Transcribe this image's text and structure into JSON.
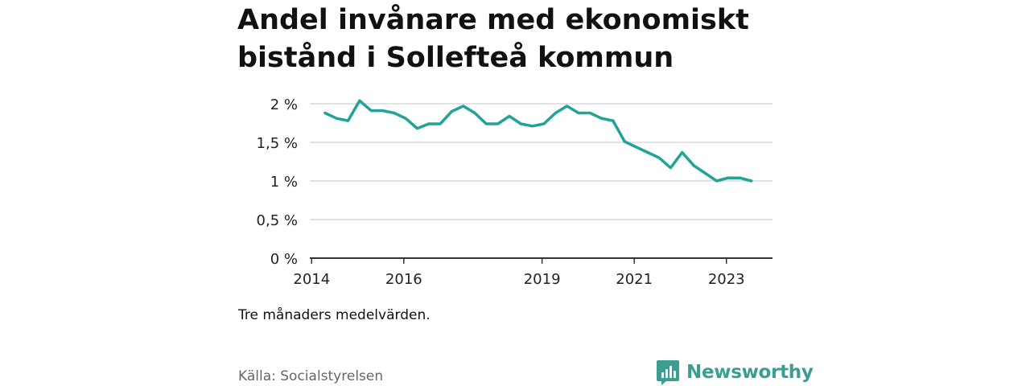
{
  "title": "Andel invånare med ekonomiskt bistånd i Sollefteå kommun",
  "note": "Tre månaders medelvärden.",
  "source": "Källa: Socialstyrelsen",
  "brand": {
    "name": "Newsworthy",
    "icon": "newsworthy-logo-icon",
    "color": "#3a9e91"
  },
  "chart_data": {
    "type": "line",
    "title": "Andel invånare med ekonomiskt bistånd i Sollefteå kommun",
    "xlabel": "",
    "ylabel": "",
    "ylim": [
      0,
      2
    ],
    "y_ticks": [
      0,
      0.5,
      1,
      1.5,
      2
    ],
    "y_tick_labels": [
      "0 %",
      "0,5 %",
      "1 %",
      "1,5 %",
      "2 %"
    ],
    "x_ticks": [
      2014,
      2016,
      2019,
      2021,
      2023
    ],
    "x_tick_labels": [
      "2014",
      "2016",
      "2019",
      "2021",
      "2023"
    ],
    "xlim": [
      2013.96,
      2024.0
    ],
    "grid": true,
    "line_color": "#21a396",
    "series": [
      {
        "x": [
          2014.29,
          2014.54,
          2014.79,
          2015.04,
          2015.29,
          2015.54,
          2015.79,
          2016.04,
          2016.29,
          2016.54,
          2016.79,
          2017.04,
          2017.29,
          2017.54,
          2017.79,
          2018.04,
          2018.29,
          2018.54,
          2018.79,
          2019.04,
          2019.29,
          2019.54,
          2019.79,
          2020.04,
          2020.29,
          2020.54,
          2020.79,
          2021.04,
          2021.29,
          2021.54,
          2021.79,
          2022.04,
          2022.29,
          2022.54,
          2022.79,
          2023.04,
          2023.29,
          2023.54
        ],
        "values": [
          1.88,
          1.81,
          1.78,
          2.04,
          1.91,
          1.91,
          1.88,
          1.81,
          1.68,
          1.74,
          1.74,
          1.9,
          1.97,
          1.88,
          1.74,
          1.74,
          1.84,
          1.74,
          1.71,
          1.74,
          1.88,
          1.97,
          1.88,
          1.88,
          1.81,
          1.78,
          1.51,
          1.44,
          1.37,
          1.3,
          1.17,
          1.37,
          1.2,
          1.1,
          1.0,
          1.04,
          1.04,
          1.0
        ]
      }
    ]
  }
}
